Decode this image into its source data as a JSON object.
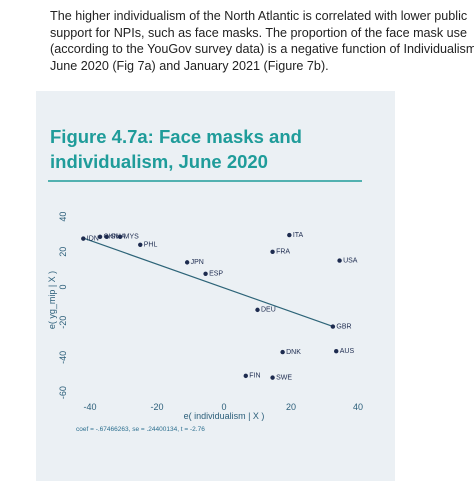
{
  "paragraph": [
    "The higher individualism of the North Atlantic is correlated with lower public",
    "support for NPIs, such as face masks. The proportion of the face mask use",
    "(according to the YouGov survey data) is a negative function of Individualism for",
    "June 2020 (Fig 7a) and January 2021 (Figure 7b)."
  ],
  "chart_data": {
    "type": "scatter",
    "title": [
      "Figure 4.7a: Face masks and",
      "individualism, June 2020"
    ],
    "x_label": "e( individualism | X )",
    "y_label": "e( yg_mip | X )",
    "note": "coef = -.67466263, se = .24400134, t = -2.76",
    "series": [
      {
        "color": "#1d2b4f",
        "labels": [
          "IDN",
          "CHN",
          "GHA",
          "MYS",
          "PHL",
          "JPN",
          "ESP",
          "ITA",
          "FRA",
          "USA",
          "DEU",
          "GBR",
          "DNK",
          "AUS",
          "FIN",
          "SWE"
        ],
        "x": [
          -42,
          -37,
          -35,
          -31,
          -25,
          -11,
          -5.5,
          19.5,
          14.5,
          34.5,
          10,
          32.5,
          17.5,
          33.5,
          6.5,
          14.5
        ],
        "values": [
          27.5,
          28.5,
          28.5,
          28.5,
          24,
          14,
          7.5,
          29.5,
          20,
          15,
          -13,
          -22.5,
          -37,
          -36.5,
          -50.5,
          -51.5
        ]
      }
    ],
    "fit_line": {
      "color": "#2d6478",
      "x": [
        -42,
        32.5
      ],
      "y": [
        27.8,
        -22.4
      ]
    },
    "xlim": [
      -44,
      42
    ],
    "ylim": [
      -62,
      42
    ],
    "xticks": [
      -40,
      -20,
      0,
      20,
      40
    ],
    "yticks": [
      -60,
      -40,
      -20,
      0,
      20,
      40
    ]
  }
}
